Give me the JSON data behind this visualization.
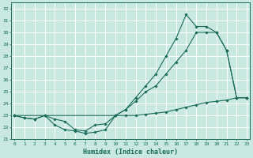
{
  "xlabel": "Humidex (Indice chaleur)",
  "bg_color": "#c8e8e0",
  "grid_color": "#ffffff",
  "line_color": "#1a6b5a",
  "series1": {
    "x": [
      0,
      1,
      2,
      3,
      4,
      5,
      6,
      7,
      8,
      9,
      10,
      11,
      12,
      13,
      14,
      15,
      16,
      17,
      18,
      19,
      20,
      21,
      22,
      23
    ],
    "y": [
      23,
      22.8,
      22.7,
      23.0,
      22.7,
      22.5,
      21.8,
      21.7,
      22.2,
      22.3,
      23.0,
      23.0,
      23.0,
      23.1,
      23.2,
      23.3,
      23.5,
      23.7,
      23.9,
      24.1,
      24.2,
      24.3,
      24.5,
      24.5
    ]
  },
  "series2": {
    "x": [
      0,
      1,
      2,
      3,
      4,
      5,
      6,
      7,
      8,
      9,
      10,
      11,
      12,
      13,
      14,
      15,
      16,
      17,
      18,
      19,
      20,
      21,
      22,
      23
    ],
    "y": [
      23,
      22.8,
      22.7,
      23.0,
      22.2,
      21.8,
      21.7,
      21.5,
      21.6,
      21.8,
      23.0,
      23.5,
      24.2,
      25.0,
      25.5,
      26.5,
      27.5,
      28.5,
      30.0,
      30.0,
      30.0,
      28.5,
      24.5,
      24.5
    ]
  },
  "series3": {
    "x": [
      0,
      10,
      11,
      12,
      13,
      14,
      15,
      16,
      17,
      18,
      19,
      20,
      21,
      22,
      23
    ],
    "y": [
      23,
      23.0,
      23.5,
      24.5,
      25.5,
      26.5,
      28.0,
      29.5,
      31.5,
      30.5,
      30.5,
      30.0,
      28.5,
      24.5,
      24.5
    ]
  },
  "xlim": [
    -0.3,
    23.3
  ],
  "ylim": [
    21,
    32.5
  ],
  "yticks": [
    21,
    22,
    23,
    24,
    25,
    26,
    27,
    28,
    29,
    30,
    31,
    32
  ],
  "xticks": [
    0,
    1,
    2,
    3,
    4,
    5,
    6,
    7,
    8,
    9,
    10,
    11,
    12,
    13,
    14,
    15,
    16,
    17,
    18,
    19,
    20,
    21,
    22,
    23
  ],
  "tick_fontsize": 4.5,
  "xlabel_fontsize": 6.0
}
